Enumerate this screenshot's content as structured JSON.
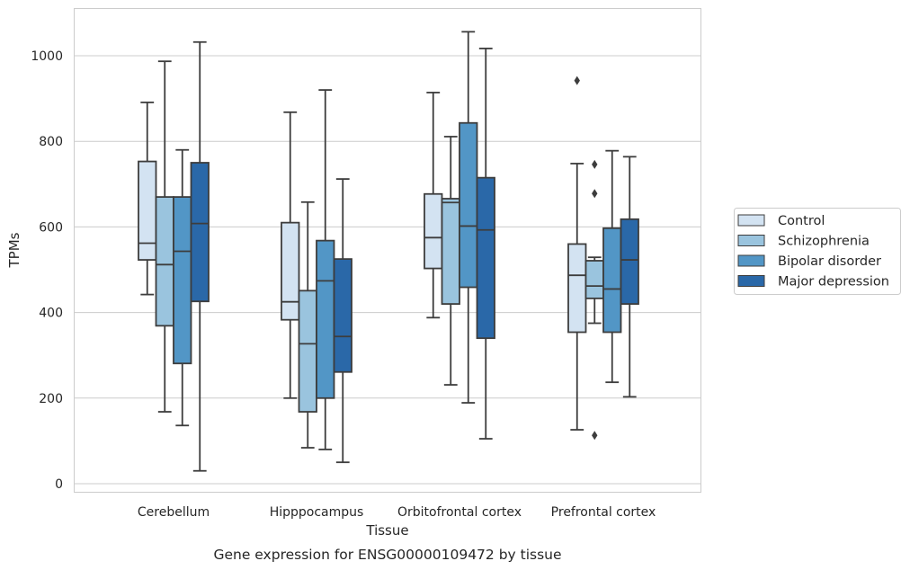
{
  "chart_data": {
    "type": "boxplot",
    "caption": "Gene expression for ENSG00000109472 by tissue",
    "xlabel": "Tissue",
    "ylabel": "TPMs",
    "ylim": [
      -20,
      1110
    ],
    "yticks": [
      0,
      200,
      400,
      600,
      800,
      1000
    ],
    "grid": true,
    "legend_position": "right",
    "categories": [
      "Cerebellum",
      "Hipppocampus",
      "Orbitofrontal cortex",
      "Prefrontal cortex"
    ],
    "series": [
      {
        "name": "Control",
        "color": "#d3e3f2",
        "boxes": [
          {
            "whislo": 442,
            "q1": 523,
            "med": 562,
            "q3": 753,
            "whishi": 891,
            "fliers": []
          },
          {
            "whislo": 200,
            "q1": 383,
            "med": 425,
            "q3": 610,
            "whishi": 868,
            "fliers": []
          },
          {
            "whislo": 388,
            "q1": 503,
            "med": 575,
            "q3": 677,
            "whishi": 914,
            "fliers": []
          },
          {
            "whislo": 126,
            "q1": 354,
            "med": 487,
            "q3": 560,
            "whishi": 748,
            "fliers": [
              942
            ]
          }
        ]
      },
      {
        "name": "Schizophrenia",
        "color": "#9ac4de",
        "boxes": [
          {
            "whislo": 168,
            "q1": 369,
            "med": 512,
            "q3": 670,
            "whishi": 987,
            "fliers": []
          },
          {
            "whislo": 84,
            "q1": 168,
            "med": 327,
            "q3": 451,
            "whishi": 658,
            "fliers": []
          },
          {
            "whislo": 231,
            "q1": 420,
            "med": 657,
            "q3": 666,
            "whishi": 811,
            "fliers": []
          },
          {
            "whislo": 375,
            "q1": 433,
            "med": 462,
            "q3": 521,
            "whishi": 529,
            "fliers": [
              113,
              678,
              746
            ]
          }
        ]
      },
      {
        "name": "Bipolar disorder",
        "color": "#5296c6",
        "boxes": [
          {
            "whislo": 136,
            "q1": 281,
            "med": 543,
            "q3": 670,
            "whishi": 780,
            "fliers": []
          },
          {
            "whislo": 80,
            "q1": 200,
            "med": 474,
            "q3": 568,
            "whishi": 920,
            "fliers": []
          },
          {
            "whislo": 189,
            "q1": 459,
            "med": 602,
            "q3": 843,
            "whishi": 1056,
            "fliers": []
          },
          {
            "whislo": 237,
            "q1": 354,
            "med": 455,
            "q3": 597,
            "whishi": 778,
            "fliers": []
          }
        ]
      },
      {
        "name": "Major depression",
        "color": "#2a68a8",
        "boxes": [
          {
            "whislo": 30,
            "q1": 426,
            "med": 608,
            "q3": 750,
            "whishi": 1032,
            "fliers": []
          },
          {
            "whislo": 50,
            "q1": 261,
            "med": 344,
            "q3": 525,
            "whishi": 712,
            "fliers": []
          },
          {
            "whislo": 105,
            "q1": 340,
            "med": 593,
            "q3": 715,
            "whishi": 1017,
            "fliers": []
          },
          {
            "whislo": 203,
            "q1": 420,
            "med": 523,
            "q3": 618,
            "whishi": 764,
            "fliers": []
          }
        ]
      }
    ],
    "line_color": "#3d3d3d",
    "grid_color": "#cccccc",
    "frame_color": "#cccccc"
  }
}
